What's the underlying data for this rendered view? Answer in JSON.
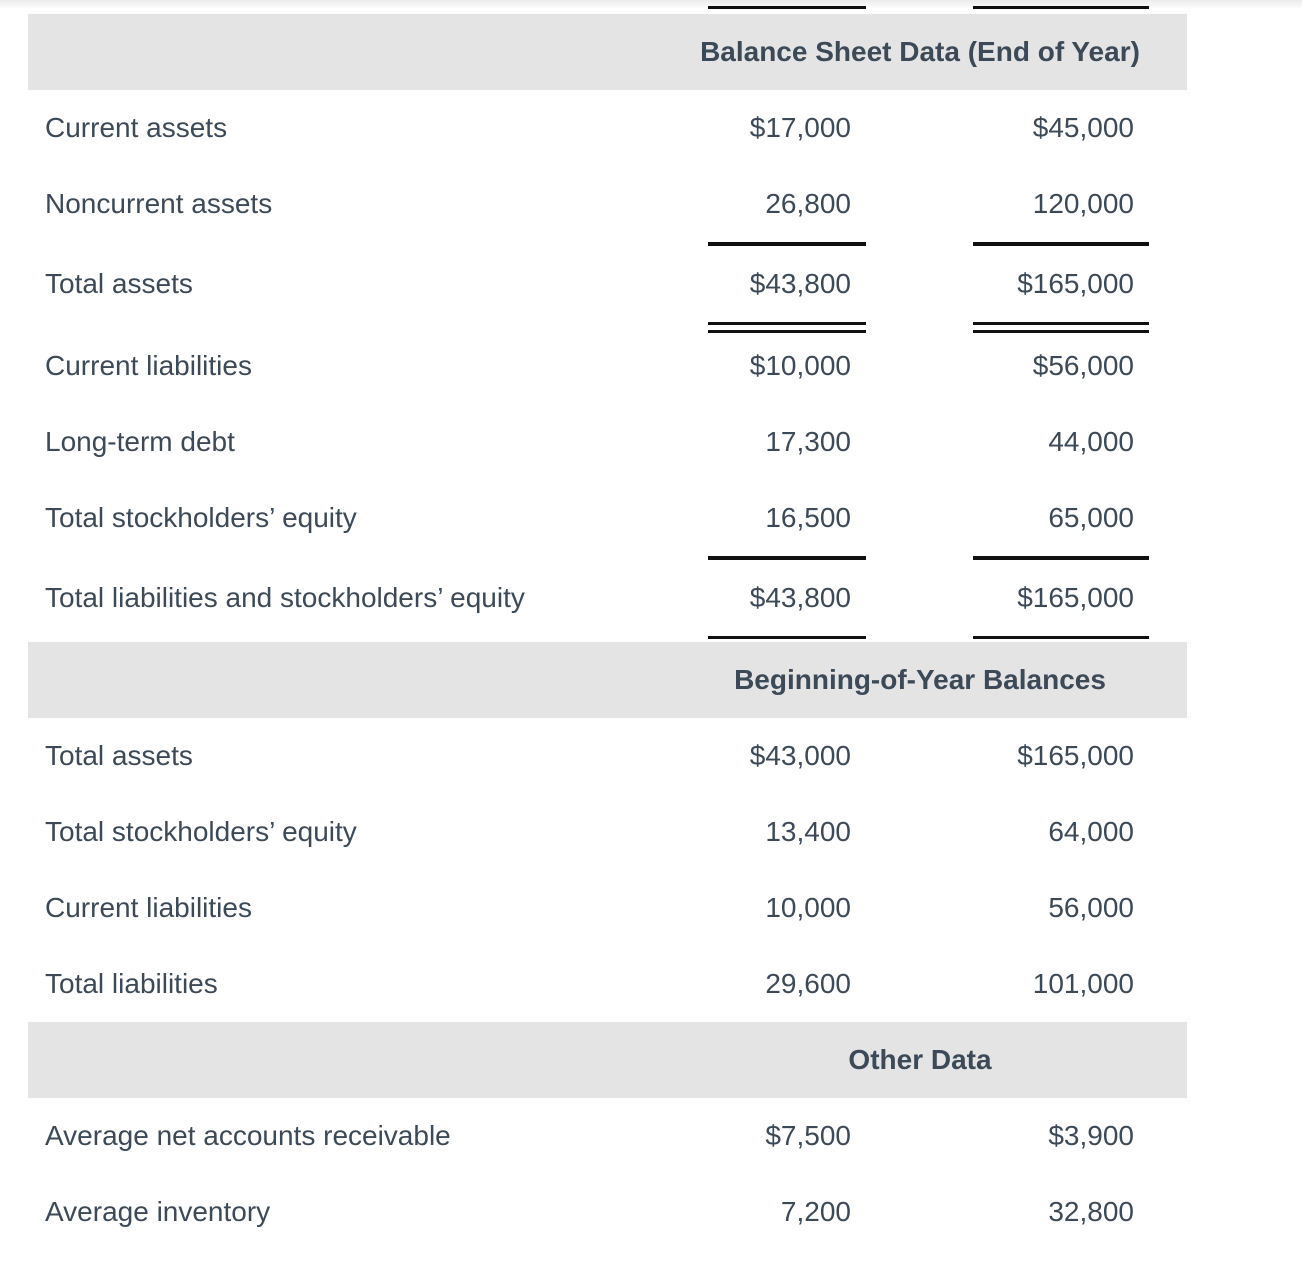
{
  "colors": {
    "band_bg": "#e4e4e4",
    "text": "#3c4a58",
    "rule": "#111111",
    "background": "#ffffff"
  },
  "table": {
    "top_rule": "double",
    "sections": [
      {
        "header": "Balance Sheet Data (End of Year)",
        "rows": [
          {
            "label": "Current assets",
            "col1": "$17,000",
            "col2": "$45,000"
          },
          {
            "label": "Noncurrent assets",
            "col1": "26,800",
            "col2": "120,000",
            "rule_below": "single"
          },
          {
            "label": "Total assets",
            "col1": "$43,800",
            "col2": "$165,000",
            "rule_below": "double"
          },
          {
            "label": "Current liabilities",
            "col1": "$10,000",
            "col2": "$56,000"
          },
          {
            "label": "Long-term debt",
            "col1": "17,300",
            "col2": "44,000"
          },
          {
            "label": "Total stockholders’ equity",
            "col1": "16,500",
            "col2": "65,000",
            "rule_below": "single"
          },
          {
            "label": "Total liabilities and stockholders’ equity",
            "col1": "$43,800",
            "col2": "$165,000",
            "rule_below": "double"
          }
        ]
      },
      {
        "header": "Beginning-of-Year Balances",
        "rows": [
          {
            "label": "Total assets",
            "col1": "$43,000",
            "col2": "$165,000"
          },
          {
            "label": "Total stockholders’ equity",
            "col1": "13,400",
            "col2": "64,000"
          },
          {
            "label": "Current liabilities",
            "col1": "10,000",
            "col2": "56,000"
          },
          {
            "label": "Total liabilities",
            "col1": "29,600",
            "col2": "101,000"
          }
        ]
      },
      {
        "header": "Other Data",
        "rows": [
          {
            "label": "Average net accounts receivable",
            "col1": "$7,500",
            "col2": "$3,900"
          },
          {
            "label": "Average inventory",
            "col1": "7,200",
            "col2": "32,800"
          }
        ]
      }
    ]
  }
}
